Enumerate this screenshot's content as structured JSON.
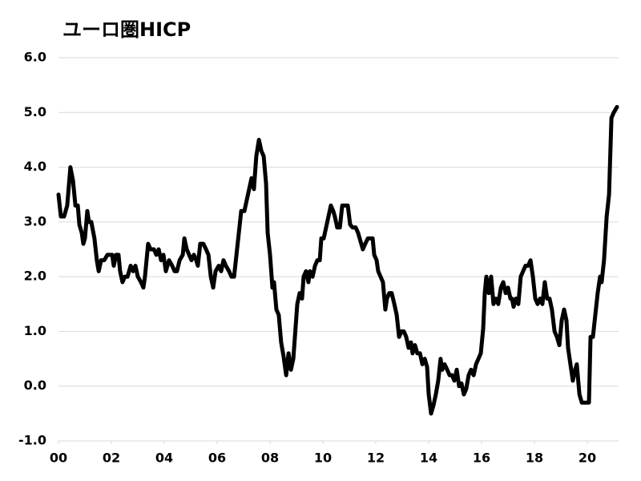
{
  "chart_data": {
    "type": "line",
    "title": "ユーロ圏HICP",
    "x": [
      2000.0,
      2000.09,
      2000.21,
      2000.33,
      2000.45,
      2000.55,
      2000.64,
      2000.73,
      2000.79,
      2000.88,
      2000.94,
      2001.0,
      2001.09,
      2001.15,
      2001.24,
      2001.36,
      2001.45,
      2001.52,
      2001.61,
      2001.73,
      2001.85,
      2002.03,
      2002.09,
      2002.18,
      2002.27,
      2002.33,
      2002.42,
      2002.51,
      2002.61,
      2002.73,
      2002.82,
      2002.91,
      2003.0,
      2003.12,
      2003.21,
      2003.27,
      2003.33,
      2003.39,
      2003.48,
      2003.61,
      2003.7,
      2003.79,
      2003.88,
      2003.97,
      2004.06,
      2004.18,
      2004.3,
      2004.39,
      2004.48,
      2004.58,
      2004.7,
      2004.76,
      2004.85,
      2004.94,
      2005.03,
      2005.12,
      2005.21,
      2005.27,
      2005.36,
      2005.48,
      2005.58,
      2005.67,
      2005.76,
      2005.85,
      2005.94,
      2006.06,
      2006.15,
      2006.24,
      2006.33,
      2006.45,
      2006.54,
      2006.64,
      2006.73,
      2006.82,
      2006.91,
      2007.03,
      2007.12,
      2007.21,
      2007.3,
      2007.39,
      2007.48,
      2007.58,
      2007.67,
      2007.76,
      2007.85,
      2007.91,
      2008.0,
      2008.09,
      2008.15,
      2008.24,
      2008.33,
      2008.42,
      2008.51,
      2008.61,
      2008.7,
      2008.79,
      2008.88,
      2008.94,
      2009.03,
      2009.12,
      2009.21,
      2009.27,
      2009.36,
      2009.45,
      2009.51,
      2009.61,
      2009.7,
      2009.79,
      2009.88,
      2009.94,
      2010.03,
      2010.12,
      2010.21,
      2010.3,
      2010.39,
      2010.45,
      2010.54,
      2010.64,
      2010.73,
      2010.85,
      2010.94,
      2011.03,
      2011.12,
      2011.24,
      2011.33,
      2011.42,
      2011.51,
      2011.6,
      2011.7,
      2011.79,
      2011.88,
      2011.94,
      2012.03,
      2012.09,
      2012.18,
      2012.27,
      2012.36,
      2012.42,
      2012.51,
      2012.6,
      2012.7,
      2012.79,
      2012.88,
      2012.97,
      2013.06,
      2013.15,
      2013.24,
      2013.33,
      2013.39,
      2013.48,
      2013.57,
      2013.67,
      2013.76,
      2013.85,
      2013.94,
      2014.0,
      2014.09,
      2014.18,
      2014.27,
      2014.36,
      2014.45,
      2014.51,
      2014.6,
      2014.7,
      2014.79,
      2014.88,
      2014.97,
      2015.06,
      2015.15,
      2015.24,
      2015.33,
      2015.42,
      2015.51,
      2015.6,
      2015.7,
      2015.79,
      2015.88,
      2015.97,
      2016.06,
      2016.12,
      2016.18,
      2016.27,
      2016.36,
      2016.45,
      2016.54,
      2016.63,
      2016.73,
      2016.82,
      2016.91,
      2017.0,
      2017.09,
      2017.15,
      2017.21,
      2017.3,
      2017.39,
      2017.48,
      2017.57,
      2017.66,
      2017.76,
      2017.85,
      2017.94,
      2018.03,
      2018.12,
      2018.21,
      2018.3,
      2018.39,
      2018.48,
      2018.57,
      2018.66,
      2018.76,
      2018.85,
      2018.94,
      2019.03,
      2019.12,
      2019.21,
      2019.27,
      2019.36,
      2019.45,
      2019.54,
      2019.6,
      2019.7,
      2019.79,
      2019.88,
      2019.97,
      2020.06,
      2020.12,
      2020.21,
      2020.3,
      2020.39,
      2020.48,
      2020.54,
      2020.63,
      2020.73,
      2020.82,
      2020.91,
      2021.0,
      2021.12
    ],
    "values": [
      3.5,
      3.1,
      3.1,
      3.3,
      4.0,
      3.75,
      3.3,
      3.3,
      2.95,
      2.8,
      2.6,
      2.7,
      3.2,
      3.0,
      3.0,
      2.7,
      2.3,
      2.1,
      2.3,
      2.3,
      2.4,
      2.4,
      2.2,
      2.4,
      2.4,
      2.1,
      1.9,
      2.0,
      2.0,
      2.2,
      2.1,
      2.2,
      2.0,
      1.9,
      1.8,
      2.0,
      2.3,
      2.6,
      2.5,
      2.5,
      2.4,
      2.5,
      2.3,
      2.4,
      2.1,
      2.3,
      2.2,
      2.1,
      2.1,
      2.3,
      2.4,
      2.7,
      2.5,
      2.4,
      2.3,
      2.4,
      2.3,
      2.2,
      2.6,
      2.6,
      2.5,
      2.4,
      2.0,
      1.8,
      2.1,
      2.2,
      2.1,
      2.3,
      2.2,
      2.1,
      2.0,
      2.0,
      2.4,
      2.8,
      3.2,
      3.2,
      3.4,
      3.6,
      3.8,
      3.6,
      4.2,
      4.5,
      4.3,
      4.2,
      3.7,
      2.8,
      2.4,
      1.8,
      1.9,
      1.4,
      1.3,
      0.8,
      0.55,
      0.2,
      0.6,
      0.3,
      0.5,
      0.9,
      1.5,
      1.7,
      1.6,
      2.0,
      2.1,
      1.9,
      2.1,
      2.0,
      2.2,
      2.3,
      2.3,
      2.7,
      2.7,
      2.9,
      3.1,
      3.3,
      3.2,
      3.1,
      2.9,
      2.9,
      3.3,
      3.3,
      3.3,
      2.95,
      2.9,
      2.9,
      2.8,
      2.65,
      2.5,
      2.6,
      2.7,
      2.7,
      2.7,
      2.4,
      2.3,
      2.1,
      2.0,
      1.9,
      1.4,
      1.6,
      1.7,
      1.7,
      1.5,
      1.3,
      0.9,
      1.0,
      1.0,
      0.9,
      0.7,
      0.8,
      0.6,
      0.75,
      0.6,
      0.6,
      0.4,
      0.5,
      0.35,
      -0.15,
      -0.5,
      -0.35,
      -0.15,
      0.1,
      0.5,
      0.3,
      0.4,
      0.3,
      0.2,
      0.2,
      0.1,
      0.3,
      0.0,
      0.05,
      -0.15,
      -0.05,
      0.2,
      0.3,
      0.2,
      0.4,
      0.5,
      0.6,
      1.05,
      1.7,
      2.0,
      1.7,
      2.0,
      1.5,
      1.6,
      1.5,
      1.8,
      1.9,
      1.7,
      1.8,
      1.6,
      1.6,
      1.45,
      1.6,
      1.5,
      2.0,
      2.1,
      2.2,
      2.2,
      2.3,
      2.0,
      1.6,
      1.5,
      1.6,
      1.5,
      1.9,
      1.6,
      1.6,
      1.4,
      1.0,
      0.9,
      0.75,
      1.2,
      1.4,
      1.2,
      0.7,
      0.4,
      0.1,
      0.3,
      0.4,
      -0.15,
      -0.3,
      -0.3,
      -0.3,
      -0.3,
      0.9,
      0.9,
      1.3,
      1.7,
      2.0,
      1.9,
      2.3,
      3.1,
      3.5,
      4.9,
      5.0,
      5.1
    ],
    "color": "#000000",
    "xlim": [
      2000,
      2021.18
    ],
    "xticks": [
      {
        "value": 2000,
        "label": "00"
      },
      {
        "value": 2002,
        "label": "02"
      },
      {
        "value": 2004,
        "label": "04"
      },
      {
        "value": 2006,
        "label": "06"
      },
      {
        "value": 2008,
        "label": "08"
      },
      {
        "value": 2010,
        "label": "10"
      },
      {
        "value": 2012,
        "label": "12"
      },
      {
        "value": 2014,
        "label": "14"
      },
      {
        "value": 2016,
        "label": "16"
      },
      {
        "value": 2018,
        "label": "18"
      },
      {
        "value": 2020,
        "label": "20"
      }
    ],
    "ylim": [
      -1,
      6
    ],
    "yticks": [
      {
        "value": -1,
        "label": "-1.0"
      },
      {
        "value": 0,
        "label": "0.0"
      },
      {
        "value": 1,
        "label": "1.0"
      },
      {
        "value": 2,
        "label": "2.0"
      },
      {
        "value": 3,
        "label": "3.0"
      },
      {
        "value": 4,
        "label": "4.0"
      },
      {
        "value": 5,
        "label": "5.0"
      },
      {
        "value": 6,
        "label": "6.0"
      }
    ],
    "grid": true,
    "negative_tick_color": "#ff0000"
  }
}
